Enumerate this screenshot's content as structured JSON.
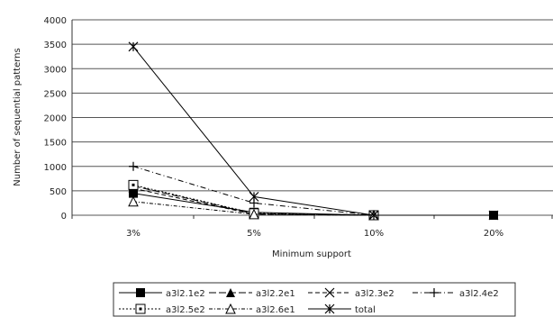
{
  "chart_data": {
    "type": "line",
    "title": "",
    "xlabel": "Minimum support",
    "ylabel": "Number of sequential patterns",
    "categories": [
      "3%",
      "5%",
      "10%",
      "20%"
    ],
    "ylim": [
      0,
      4000
    ],
    "yticks": [
      0,
      500,
      1000,
      1500,
      2000,
      2500,
      3000,
      3500,
      4000
    ],
    "grid": true,
    "legend_position": "bottom",
    "series": [
      {
        "name": "a3l2.1e2",
        "values": [
          450,
          60,
          0,
          0
        ],
        "marker": "filled-square",
        "dash": "solid",
        "color": "#000000"
      },
      {
        "name": "a3l2.2e1",
        "values": [
          600,
          30,
          0,
          null
        ],
        "marker": "filled-triangle",
        "dash": "longdash",
        "color": "#000000"
      },
      {
        "name": "a3l2.3e2",
        "values": [
          550,
          20,
          0,
          null
        ],
        "marker": "x",
        "dash": "dash",
        "color": "#000000"
      },
      {
        "name": "a3l2.4e2",
        "values": [
          1000,
          250,
          0,
          null
        ],
        "marker": "plus",
        "dash": "dashdot",
        "color": "#000000"
      },
      {
        "name": "a3l2.5e2",
        "values": [
          620,
          40,
          0,
          null
        ],
        "marker": "open-square",
        "dash": "dot",
        "color": "#000000"
      },
      {
        "name": "a3l2.6e1",
        "values": [
          280,
          20,
          0,
          null
        ],
        "marker": "open-triangle",
        "dash": "dashdot2",
        "color": "#000000"
      },
      {
        "name": "total",
        "values": [
          3450,
          380,
          0,
          0
        ],
        "marker": "star",
        "dash": "solid",
        "color": "#000000"
      }
    ]
  }
}
